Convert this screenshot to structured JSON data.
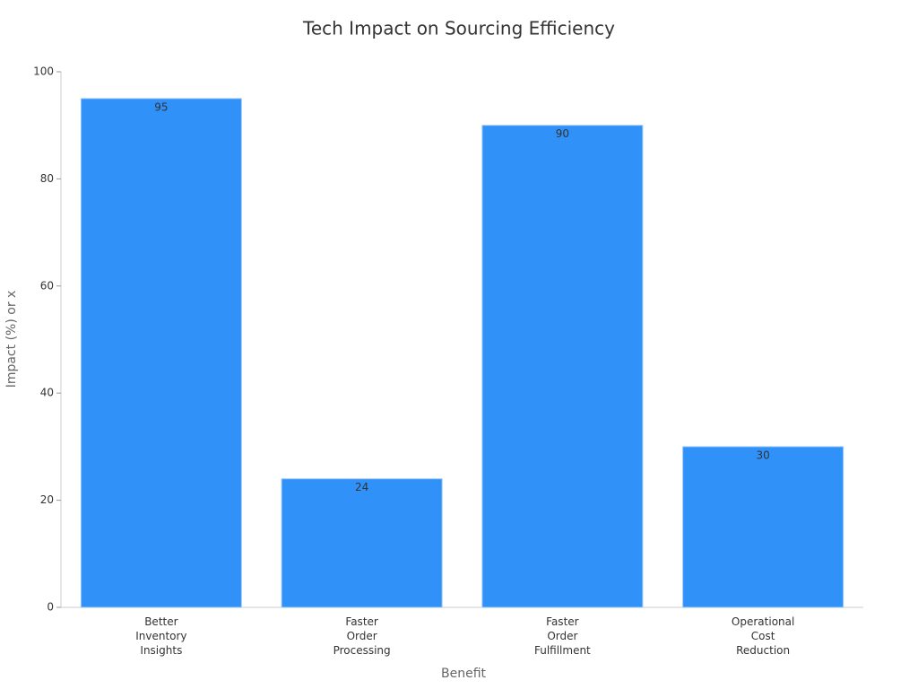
{
  "chart_data": {
    "type": "bar",
    "title": "Tech Impact on Sourcing Efficiency",
    "x_label": "Benefit",
    "y_label": "Impact (%) or x",
    "categories": [
      "Better Inventory Insights",
      "Faster Order Processing",
      "Faster Order Fulfillment",
      "Operational Cost Reduction"
    ],
    "values": [
      95,
      24,
      90,
      30
    ],
    "color": "#3091f8",
    "ylim": [
      0,
      100
    ],
    "yticks": [
      0,
      20,
      40,
      60,
      80,
      100
    ],
    "grid": false
  }
}
